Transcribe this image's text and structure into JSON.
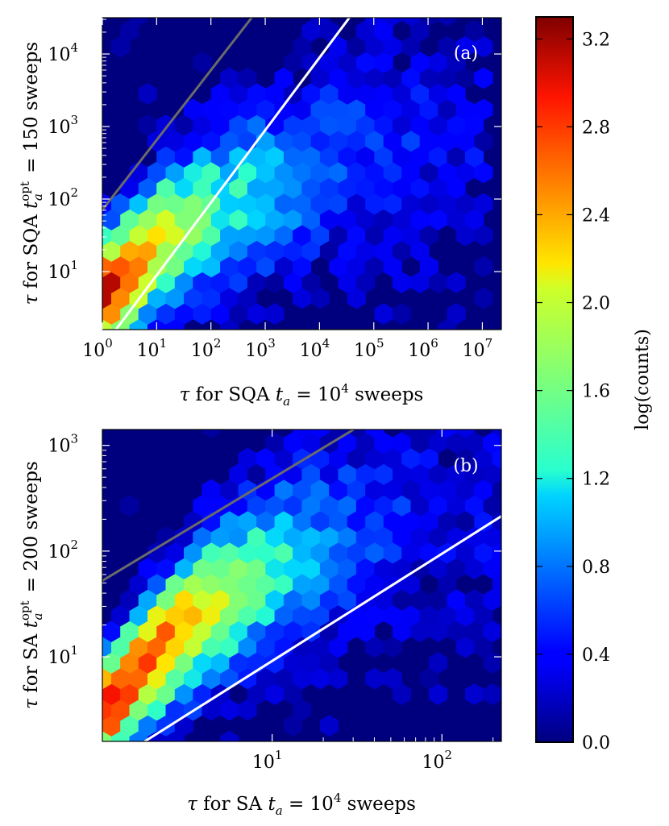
{
  "colors": {
    "background": "#00007f",
    "ref_line_gray": "#6b6b6b",
    "ref_line_white": "#ffffff",
    "colormap": "jet"
  },
  "colorbar": {
    "label": "log(counts)",
    "min": 0.0,
    "max": 3.3,
    "ticks": [
      0.0,
      0.4,
      0.8,
      1.2,
      1.6,
      2.0,
      2.4,
      2.8,
      3.2
    ],
    "tick_labels": [
      "0.0",
      "0.4",
      "0.8",
      "1.2",
      "1.6",
      "2.0",
      "2.4",
      "2.8",
      "3.2"
    ]
  },
  "chart_data": [
    {
      "type": "heatmap",
      "subtype": "hexbin",
      "panel_label": "(a)",
      "xlabel": "τ for SQA t_a = 10^4 sweeps",
      "ylabel": "τ for SQA t_a^opt = 150 sweeps",
      "xscale": "log",
      "yscale": "log",
      "xlim_log10": [
        0.0,
        7.35
      ],
      "ylim_log10": [
        0.2,
        4.5
      ],
      "xticks_log10": [
        0,
        1,
        2,
        3,
        4,
        5,
        6,
        7
      ],
      "yticks_log10": [
        1,
        2,
        3,
        4
      ],
      "tick_base": "10",
      "reference_lines": [
        {
          "name": "gray",
          "color": "gray",
          "points_log10": [
            [
              0.0,
              1.85
            ],
            [
              2.75,
              4.5
            ]
          ]
        },
        {
          "name": "white",
          "color": "white",
          "points_log10": [
            [
              0.25,
              0.2
            ],
            [
              4.55,
              4.5
            ]
          ]
        }
      ],
      "density_ridge": [
        {
          "x_log10": 0.1,
          "y_log10": 0.7,
          "level": 3.2
        },
        {
          "x_log10": 0.5,
          "y_log10": 1.0,
          "level": 2.8
        },
        {
          "x_log10": 1.2,
          "y_log10": 1.5,
          "level": 2.0
        },
        {
          "x_log10": 2.5,
          "y_log10": 2.0,
          "level": 1.2
        },
        {
          "x_log10": 4.5,
          "y_log10": 2.6,
          "level": 0.6
        },
        {
          "x_log10": 6.5,
          "y_log10": 2.8,
          "level": 0.3
        }
      ]
    },
    {
      "type": "heatmap",
      "subtype": "hexbin",
      "panel_label": "(b)",
      "xlabel": "τ for SA t_a = 10^4 sweeps",
      "ylabel": "τ for SA t_a^opt = 200 sweeps",
      "xscale": "log",
      "yscale": "log",
      "xlim_log10": [
        0.0,
        2.35
      ],
      "ylim_log10": [
        0.2,
        3.15
      ],
      "xticks_log10": [
        1,
        2
      ],
      "yticks_log10": [
        1,
        2,
        3
      ],
      "tick_base": "10",
      "reference_lines": [
        {
          "name": "gray",
          "color": "gray",
          "points_log10": [
            [
              0.0,
              1.72
            ],
            [
              1.48,
              3.15
            ]
          ]
        },
        {
          "name": "white",
          "color": "white",
          "points_log10": [
            [
              0.25,
              0.2
            ],
            [
              2.35,
              2.33
            ]
          ]
        }
      ],
      "density_ridge": [
        {
          "x_log10": 0.05,
          "y_log10": 0.55,
          "level": 3.0
        },
        {
          "x_log10": 0.35,
          "y_log10": 1.1,
          "level": 2.7
        },
        {
          "x_log10": 0.7,
          "y_log10": 1.55,
          "level": 1.9
        },
        {
          "x_log10": 1.0,
          "y_log10": 1.85,
          "level": 1.3
        },
        {
          "x_log10": 1.5,
          "y_log10": 2.2,
          "level": 0.6
        },
        {
          "x_log10": 2.1,
          "y_log10": 2.45,
          "level": 0.3
        }
      ]
    }
  ]
}
